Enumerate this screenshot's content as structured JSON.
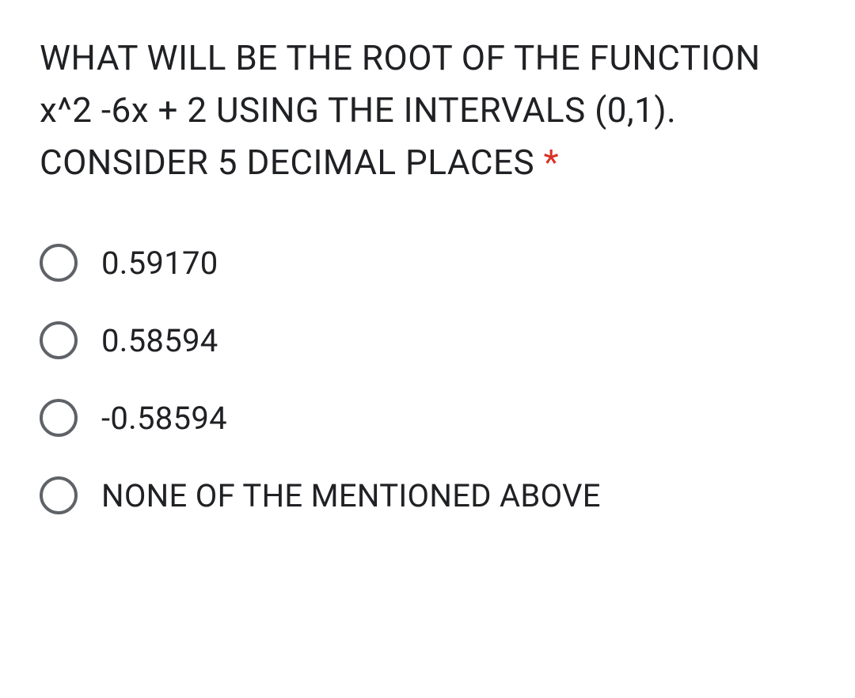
{
  "question": {
    "text": "WHAT WILL BE THE ROOT OF THE FUNCTION x^2 -6x + 2 USING THE INTERVALS (0,1). CONSIDER 5 DECIMAL PLACES ",
    "required_marker": "*",
    "required_color": "#d93025",
    "text_color": "#202124",
    "font_size": 44
  },
  "options": [
    {
      "label": "0.59170"
    },
    {
      "label": "0.58594"
    },
    {
      "label": "-0.58594"
    },
    {
      "label": "NONE OF THE MENTIONED ABOVE"
    }
  ],
  "styling": {
    "background_color": "#ffffff",
    "radio_border_color": "#5f6368",
    "radio_size": 48,
    "option_font_size": 40,
    "option_gap": 50
  }
}
